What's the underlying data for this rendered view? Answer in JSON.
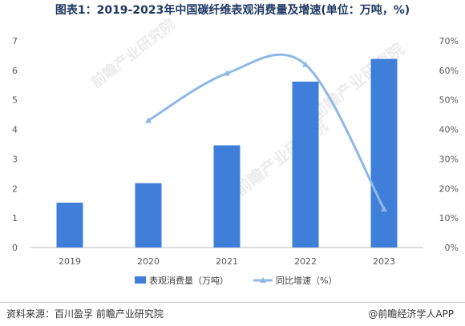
{
  "title": "图表1：2019-2023年中国碳纤维表观消费量及增速(单位：万吨，%)",
  "source": "资料来源：百川盈孚 前瞻产业研究院",
  "credit": "@前瞻经济学人APP",
  "watermark": "前瞻产业研究院",
  "colors": {
    "bar": "#3f7fd9",
    "line": "#8fb8e8",
    "title": "#1f3864"
  },
  "chart_data": {
    "type": "bar+line",
    "categories": [
      "2019",
      "2020",
      "2021",
      "2022",
      "2023"
    ],
    "series": [
      {
        "name": "表观消费量（万吨）",
        "type": "bar",
        "axis": "left",
        "values": [
          1.52,
          2.18,
          3.46,
          5.62,
          6.39
        ]
      },
      {
        "name": "同比增速（%）",
        "type": "line",
        "axis": "right",
        "values": [
          null,
          43,
          59,
          62,
          13
        ]
      }
    ],
    "ylim_left": [
      0,
      7
    ],
    "yticks_left": [
      "0",
      "1",
      "2",
      "3",
      "4",
      "5",
      "6",
      "7"
    ],
    "ylim_right": [
      0,
      70
    ],
    "yticks_right": [
      "0%",
      "10%",
      "20%",
      "30%",
      "40%",
      "50%",
      "60%",
      "70%"
    ],
    "legend_position": "bottom",
    "grid": false
  }
}
